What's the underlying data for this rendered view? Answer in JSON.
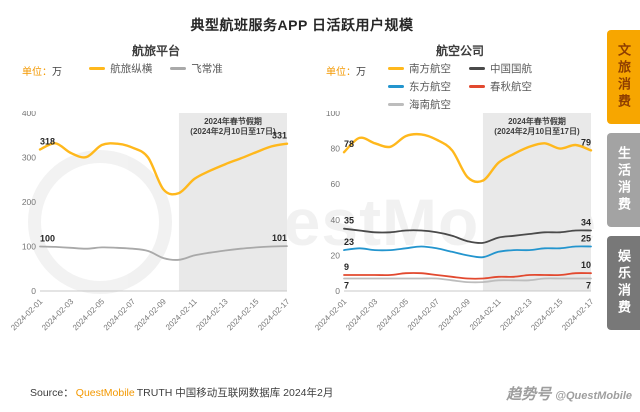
{
  "header": {
    "title": "典型航班服务APP 日活跃用户规模"
  },
  "background_watermark": "QuestMobile",
  "colors": {
    "brand_orange": "#F39800",
    "holiday_band_gray": "#E9E9E9",
    "active_tab_gold": "#F7A600"
  },
  "side_tabs": {
    "items": [
      {
        "label": "文旅消费",
        "bg": "#F7A600",
        "fg": "#8F3E00",
        "active": true
      },
      {
        "label": "生活消费",
        "bg": "#A3A3A3",
        "fg": "#FFFFFF",
        "active": false
      },
      {
        "label": "娱乐消费",
        "bg": "#787878",
        "fg": "#FFFFFF",
        "active": false
      }
    ]
  },
  "footer": {
    "source_prefix": "Source：",
    "source_brand": "QuestMobile",
    "source_rest": "TRUTH 中国移动互联网数据库 2024年2月",
    "watermark_cn": "趋势号",
    "watermark_handle": "@QuestMobile"
  },
  "chart_data": [
    {
      "type": "line",
      "title": "航旅平台",
      "unit_prefix": "单位：",
      "unit_value": "万",
      "x": [
        "2024-02-01",
        "2024-02-02",
        "2024-02-03",
        "2024-02-04",
        "2024-02-05",
        "2024-02-06",
        "2024-02-07",
        "2024-02-08",
        "2024-02-09",
        "2024-02-10",
        "2024-02-11",
        "2024-02-12",
        "2024-02-13",
        "2024-02-14",
        "2024-02-15",
        "2024-02-16",
        "2024-02-17"
      ],
      "x_tick_labels": [
        "2024-02-01",
        "2024-02-03",
        "2024-02-05",
        "2024-02-07",
        "2024-02-09",
        "2024-02-11",
        "2024-02-13",
        "2024-02-15",
        "2024-02-17"
      ],
      "ylim": [
        0,
        400
      ],
      "yticks": [
        0,
        100,
        200,
        300,
        400
      ],
      "grid": false,
      "holiday_band": {
        "from": "2024-02-10",
        "to": "2024-02-17",
        "line1": "2024年春节假期",
        "line2": "(2024年2月10日至17日)"
      },
      "series": [
        {
          "name": "航旅纵横",
          "color": "#FFB81C",
          "width": 2.4,
          "label_position": "above",
          "start_label": "318",
          "end_label": "331",
          "values": [
            318,
            332,
            310,
            301,
            328,
            331,
            322,
            300,
            228,
            220,
            252,
            270,
            285,
            298,
            312,
            325,
            331
          ]
        },
        {
          "name": "飞常准",
          "color": "#A9A9A9",
          "width": 1.8,
          "label_position": "above",
          "start_label": "100",
          "end_label": "101",
          "values": [
            100,
            99,
            97,
            95,
            98,
            97,
            95,
            90,
            74,
            70,
            80,
            86,
            91,
            95,
            98,
            100,
            101
          ]
        }
      ]
    },
    {
      "type": "line",
      "title": "航空公司",
      "unit_prefix": "单位：",
      "unit_value": "万",
      "x": [
        "2024-02-01",
        "2024-02-02",
        "2024-02-03",
        "2024-02-04",
        "2024-02-05",
        "2024-02-06",
        "2024-02-07",
        "2024-02-08",
        "2024-02-09",
        "2024-02-10",
        "2024-02-11",
        "2024-02-12",
        "2024-02-13",
        "2024-02-14",
        "2024-02-15",
        "2024-02-16",
        "2024-02-17"
      ],
      "x_tick_labels": [
        "2024-02-01",
        "2024-02-03",
        "2024-02-05",
        "2024-02-07",
        "2024-02-09",
        "2024-02-11",
        "2024-02-13",
        "2024-02-15",
        "2024-02-17"
      ],
      "ylim": [
        0,
        100
      ],
      "yticks": [
        0,
        20,
        40,
        60,
        80,
        100
      ],
      "grid": false,
      "holiday_band": {
        "from": "2024-02-10",
        "to": "2024-02-17",
        "line1": "2024年春节假期",
        "line2": "(2024年2月10日至17日)"
      },
      "series": [
        {
          "name": "南方航空",
          "color": "#FFB81C",
          "width": 2.4,
          "label_position": "above",
          "start_label": "78",
          "end_label": "79",
          "values": [
            78,
            86,
            83,
            81,
            87,
            88,
            85,
            79,
            64,
            62,
            72,
            77,
            81,
            83,
            80,
            82,
            79
          ]
        },
        {
          "name": "中国国航",
          "color": "#4A4A4A",
          "width": 1.8,
          "label_position": "above",
          "start_label": "35",
          "end_label": "34",
          "values": [
            35,
            34,
            33,
            33,
            34,
            34,
            33,
            31,
            28,
            27,
            30,
            31,
            32,
            33,
            33,
            34,
            34
          ]
        },
        {
          "name": "东方航空",
          "color": "#2395CE",
          "width": 1.8,
          "label_position": "above",
          "start_label": "23",
          "end_label": "25",
          "values": [
            23,
            24,
            23,
            23,
            24,
            25,
            24,
            22,
            20,
            19,
            22,
            23,
            23,
            24,
            24,
            25,
            25
          ]
        },
        {
          "name": "春秋航空",
          "color": "#E2492F",
          "width": 1.8,
          "label_position": "above",
          "start_label": "9",
          "end_label": "10",
          "values": [
            9,
            9,
            9,
            9,
            10,
            10,
            9,
            8,
            7,
            7,
            8,
            8,
            9,
            9,
            9,
            10,
            10
          ]
        },
        {
          "name": "海南航空",
          "color": "#BDBDBD",
          "width": 1.8,
          "label_position": "below",
          "start_label": "7",
          "end_label": "7",
          "values": [
            7,
            7,
            7,
            7,
            7,
            7,
            7,
            6,
            5,
            5,
            6,
            6,
            6,
            7,
            7,
            7,
            7
          ]
        }
      ]
    }
  ]
}
